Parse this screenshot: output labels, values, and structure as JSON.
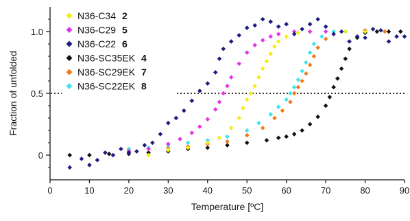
{
  "chart_data": {
    "type": "scatter",
    "xlabel": "Temperature  [ºC]",
    "ylabel": "Fraction of unfolded",
    "xlim": [
      0,
      90
    ],
    "ylim": [
      -0.2,
      1.2
    ],
    "x_ticks": [
      0,
      10,
      20,
      30,
      40,
      50,
      60,
      70,
      80,
      90
    ],
    "y_ticks": [
      {
        "value": 0,
        "label": "0"
      },
      {
        "value": 0.5,
        "label": "0.5"
      },
      {
        "value": 1.0,
        "label": "1.0"
      }
    ],
    "reference_line": {
      "y": 0.5,
      "style": "dotted"
    },
    "legend_position": "top-left",
    "series": [
      {
        "name": "N36-C34",
        "label_number": "2",
        "color": "#f2ec1b",
        "marker": "diamond",
        "points": [
          [
            25,
            0.0
          ],
          [
            30,
            0.04
          ],
          [
            35,
            0.06
          ],
          [
            40,
            0.1
          ],
          [
            43,
            0.14
          ],
          [
            46,
            0.22
          ],
          [
            48,
            0.3
          ],
          [
            49,
            0.38
          ],
          [
            50,
            0.45
          ],
          [
            51,
            0.5
          ],
          [
            52,
            0.56
          ],
          [
            53,
            0.63
          ],
          [
            54,
            0.7
          ],
          [
            55,
            0.76
          ],
          [
            56,
            0.82
          ],
          [
            57,
            0.88
          ],
          [
            58,
            0.92
          ],
          [
            60,
            0.96
          ],
          [
            63,
            0.99
          ],
          [
            66,
            1.0
          ],
          [
            70,
            1.0
          ],
          [
            75,
            1.0
          ],
          [
            80,
            1.0
          ]
        ]
      },
      {
        "name": "N36-C29",
        "label_number": "5",
        "color": "#e832e8",
        "marker": "diamond",
        "points": [
          [
            20,
            0.03
          ],
          [
            25,
            0.05
          ],
          [
            30,
            0.09
          ],
          [
            33,
            0.13
          ],
          [
            36,
            0.18
          ],
          [
            38,
            0.23
          ],
          [
            40,
            0.29
          ],
          [
            42,
            0.37
          ],
          [
            43,
            0.43
          ],
          [
            44,
            0.5
          ],
          [
            45,
            0.56
          ],
          [
            46,
            0.63
          ],
          [
            48,
            0.74
          ],
          [
            50,
            0.83
          ],
          [
            52,
            0.89
          ],
          [
            54,
            0.93
          ],
          [
            56,
            0.96
          ],
          [
            58,
            0.98
          ],
          [
            62,
            1.0
          ],
          [
            66,
            1.0
          ],
          [
            70,
            1.0
          ]
        ]
      },
      {
        "name": "N36-C22",
        "label_number": "6",
        "color": "#1c1c80",
        "marker": "diamond",
        "points": [
          [
            5,
            -0.1
          ],
          [
            8,
            -0.03
          ],
          [
            10,
            -0.08
          ],
          [
            12,
            -0.04
          ],
          [
            14,
            0.02
          ],
          [
            16,
            0.0
          ],
          [
            18,
            0.05
          ],
          [
            20,
            0.02
          ],
          [
            22,
            0.03
          ],
          [
            24,
            0.08
          ],
          [
            26,
            0.1
          ],
          [
            28,
            0.17
          ],
          [
            30,
            0.26
          ],
          [
            32,
            0.3
          ],
          [
            34,
            0.36
          ],
          [
            36,
            0.44
          ],
          [
            38,
            0.52
          ],
          [
            40,
            0.58
          ],
          [
            42,
            0.67
          ],
          [
            43,
            0.78
          ],
          [
            44,
            0.86
          ],
          [
            46,
            0.92
          ],
          [
            48,
            0.97
          ],
          [
            50,
            1.03
          ],
          [
            52,
            1.05
          ],
          [
            54,
            1.1
          ],
          [
            56,
            1.08
          ],
          [
            58,
            1.04
          ],
          [
            60,
            1.06
          ],
          [
            62,
            0.98
          ],
          [
            64,
            1.02
          ],
          [
            66,
            1.06
          ],
          [
            68,
            1.1
          ],
          [
            70,
            1.04
          ],
          [
            72,
            0.98
          ],
          [
            74,
            1.0
          ],
          [
            76,
            0.92
          ],
          [
            78,
            0.96
          ],
          [
            80,
            0.95
          ],
          [
            82,
            1.02
          ],
          [
            84,
            1.01
          ],
          [
            86,
            0.92
          ],
          [
            88,
            0.96
          ],
          [
            90,
            0.96
          ]
        ]
      },
      {
        "name": "N36-SC35EK",
        "label_number": "4",
        "color": "#111111",
        "marker": "diamond",
        "points": [
          [
            5,
            0.0
          ],
          [
            10,
            0.0
          ],
          [
            15,
            0.01
          ],
          [
            20,
            0.01
          ],
          [
            25,
            0.02
          ],
          [
            30,
            0.03
          ],
          [
            35,
            0.05
          ],
          [
            40,
            0.06
          ],
          [
            45,
            0.08
          ],
          [
            50,
            0.1
          ],
          [
            55,
            0.12
          ],
          [
            58,
            0.14
          ],
          [
            60,
            0.15
          ],
          [
            62,
            0.17
          ],
          [
            64,
            0.2
          ],
          [
            66,
            0.25
          ],
          [
            68,
            0.31
          ],
          [
            70,
            0.4
          ],
          [
            71,
            0.47
          ],
          [
            72,
            0.55
          ],
          [
            73,
            0.62
          ],
          [
            74,
            0.7
          ],
          [
            75,
            0.78
          ],
          [
            76,
            0.86
          ],
          [
            78,
            0.95
          ],
          [
            80,
            0.99
          ],
          [
            83,
            1.0
          ],
          [
            86,
            1.0
          ],
          [
            89,
            1.0
          ]
        ]
      },
      {
        "name": "N36-SC29EK",
        "label_number": "7",
        "color": "#f07a1c",
        "marker": "diamond",
        "points": [
          [
            20,
            0.04
          ],
          [
            25,
            0.05
          ],
          [
            30,
            0.06
          ],
          [
            35,
            0.07
          ],
          [
            40,
            0.09
          ],
          [
            45,
            0.11
          ],
          [
            50,
            0.16
          ],
          [
            54,
            0.22
          ],
          [
            57,
            0.3
          ],
          [
            59,
            0.36
          ],
          [
            61,
            0.43
          ],
          [
            62,
            0.5
          ],
          [
            63,
            0.55
          ],
          [
            64,
            0.6
          ],
          [
            65,
            0.66
          ],
          [
            66,
            0.73
          ],
          [
            67,
            0.8
          ],
          [
            68,
            0.87
          ],
          [
            70,
            0.94
          ],
          [
            72,
            0.98
          ],
          [
            75,
            1.0
          ],
          [
            80,
            1.01
          ],
          [
            85,
            1.0
          ]
        ]
      },
      {
        "name": "N36-SC22EK",
        "label_number": "8",
        "color": "#3ee4ee",
        "marker": "diamond",
        "points": [
          [
            20,
            0.05
          ],
          [
            25,
            0.06
          ],
          [
            30,
            0.08
          ],
          [
            35,
            0.1
          ],
          [
            40,
            0.12
          ],
          [
            45,
            0.15
          ],
          [
            50,
            0.2
          ],
          [
            53,
            0.26
          ],
          [
            56,
            0.33
          ],
          [
            58,
            0.39
          ],
          [
            60,
            0.45
          ],
          [
            61,
            0.5
          ],
          [
            62,
            0.55
          ],
          [
            63,
            0.61
          ],
          [
            64,
            0.68
          ],
          [
            65,
            0.75
          ],
          [
            66,
            0.83
          ],
          [
            67,
            0.9
          ],
          [
            69,
            0.96
          ],
          [
            72,
            1.0
          ],
          [
            75,
            1.0
          ],
          [
            80,
            1.0
          ]
        ]
      }
    ]
  }
}
